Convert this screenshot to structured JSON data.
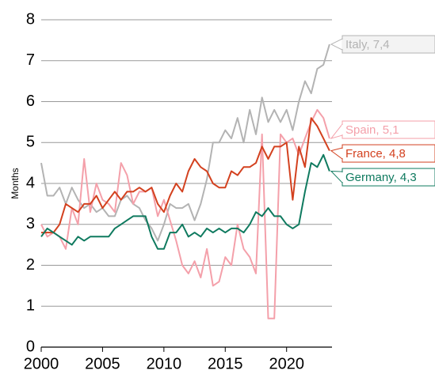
{
  "chart_data": {
    "type": "line",
    "y_label": "Months",
    "x": [
      2000,
      2000.5,
      2001,
      2001.5,
      2002,
      2002.5,
      2003,
      2003.5,
      2004,
      2004.5,
      2005,
      2005.5,
      2006,
      2006.5,
      2007,
      2007.5,
      2008,
      2008.5,
      2009,
      2009.5,
      2010,
      2010.5,
      2011,
      2011.5,
      2012,
      2012.5,
      2013,
      2013.5,
      2014,
      2014.5,
      2015,
      2015.5,
      2016,
      2016.5,
      2017,
      2017.5,
      2018,
      2018.5,
      2019,
      2019.5,
      2020,
      2020.5,
      2021,
      2021.5,
      2022,
      2022.5,
      2023,
      2023.5
    ],
    "series": [
      {
        "name": "Italy, 7,4",
        "color": "#b3b3b3",
        "values": [
          4.5,
          3.7,
          3.7,
          3.9,
          3.5,
          3.9,
          3.6,
          3.4,
          3.5,
          3.3,
          3.4,
          3.2,
          3.2,
          3.6,
          3.7,
          3.5,
          3.4,
          3.1,
          2.9,
          2.6,
          3.0,
          3.5,
          3.4,
          3.4,
          3.5,
          3.1,
          3.5,
          4.1,
          5.0,
          5.0,
          5.3,
          5.1,
          5.6,
          5.0,
          5.8,
          5.2,
          6.1,
          5.5,
          5.8,
          5.5,
          5.8,
          5.3,
          6.0,
          6.5,
          6.2,
          6.8,
          6.9,
          7.4
        ]
      },
      {
        "name": "Spain, 5,1",
        "color": "#f4a0aa",
        "values": [
          3.0,
          2.7,
          2.8,
          2.7,
          2.4,
          3.4,
          3.0,
          4.6,
          3.3,
          4.0,
          3.6,
          3.5,
          3.3,
          4.5,
          4.2,
          3.5,
          3.8,
          3.8,
          3.9,
          3.2,
          3.6,
          3.1,
          2.6,
          2.0,
          1.8,
          2.1,
          1.7,
          2.4,
          1.5,
          1.6,
          2.2,
          2.0,
          3.0,
          2.4,
          2.2,
          1.8,
          5.2,
          0.7,
          0.7,
          5.2,
          5.0,
          5.1,
          4.7,
          5.1,
          5.5,
          5.8,
          5.6,
          5.1
        ]
      },
      {
        "name": "France, 4,8",
        "color": "#d3411f",
        "values": [
          2.8,
          2.8,
          2.8,
          3.0,
          3.5,
          3.4,
          3.3,
          3.5,
          3.5,
          3.7,
          3.4,
          3.6,
          3.8,
          3.6,
          3.8,
          3.8,
          3.9,
          3.8,
          3.9,
          3.5,
          3.3,
          3.7,
          4.0,
          3.8,
          4.3,
          4.6,
          4.4,
          4.3,
          4.0,
          3.9,
          3.9,
          4.3,
          4.2,
          4.4,
          4.4,
          4.5,
          4.9,
          4.6,
          4.9,
          4.9,
          5.0,
          3.6,
          4.9,
          4.4,
          5.6,
          5.4,
          5.1,
          4.8
        ]
      },
      {
        "name": "Germany, 4,3",
        "color": "#0f7a5f",
        "values": [
          2.7,
          2.9,
          2.8,
          2.7,
          2.6,
          2.5,
          2.7,
          2.6,
          2.7,
          2.7,
          2.7,
          2.7,
          2.9,
          3.0,
          3.1,
          3.2,
          3.2,
          3.2,
          2.7,
          2.4,
          2.4,
          2.8,
          2.8,
          3.0,
          2.7,
          2.8,
          2.7,
          2.9,
          2.8,
          2.9,
          2.8,
          2.9,
          2.9,
          2.8,
          3.0,
          3.3,
          3.2,
          3.4,
          3.2,
          3.2,
          3.0,
          2.9,
          3.0,
          3.8,
          4.5,
          4.4,
          4.7,
          4.3
        ]
      }
    ],
    "xlim": [
      2000,
      2023.7
    ],
    "xticks": [
      2000,
      2005,
      2010,
      2015,
      2020
    ],
    "ylim": [
      0,
      8
    ],
    "yticks": [
      0,
      1,
      2,
      3,
      4,
      5,
      6,
      7,
      8
    ],
    "grid": true
  }
}
